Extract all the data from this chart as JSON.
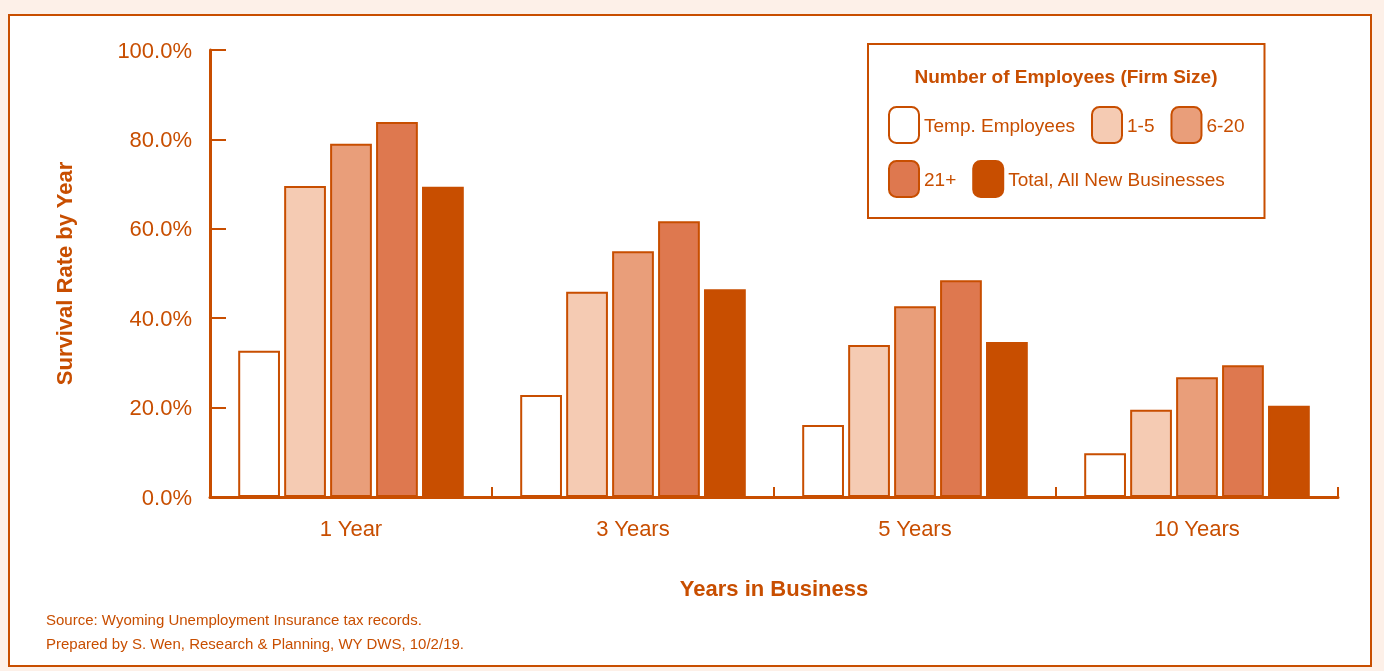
{
  "chart_data": {
    "type": "bar",
    "xlabel": "Years in Business",
    "ylabel": "Survival Rate by Year",
    "legend_title": "Number of Employees (Firm Size)",
    "legend": "top right",
    "categories": [
      "1 Year",
      "3 Years",
      "5 Years",
      "10 Years"
    ],
    "series": [
      {
        "name": "Temp. Employees",
        "color": "#ffffff",
        "values": [
          32.7,
          22.8,
          16.1,
          9.8
        ]
      },
      {
        "name": "1-5",
        "color": "#f5cbb3",
        "values": [
          69.6,
          45.9,
          34.0,
          19.5
        ]
      },
      {
        "name": "6-20",
        "color": "#e99e7a",
        "values": [
          79.0,
          55.0,
          42.7,
          26.8
        ]
      },
      {
        "name": "21+",
        "color": "#de784f",
        "values": [
          83.9,
          61.7,
          48.5,
          29.5
        ]
      },
      {
        "name": "Total, All New Businesses",
        "color": "#c84e00",
        "values": [
          69.4,
          46.5,
          34.7,
          20.4
        ]
      }
    ],
    "ylim": [
      0,
      100
    ],
    "yticks": [
      {
        "value": 0,
        "label": "0.0%"
      },
      {
        "value": 20,
        "label": "20.0%"
      },
      {
        "value": 40,
        "label": "40.0%"
      },
      {
        "value": 60,
        "label": "60.0%"
      },
      {
        "value": 80,
        "label": "80.0%"
      },
      {
        "value": 100,
        "label": "100.0%"
      }
    ],
    "grid": false,
    "annotations": [
      "Source: Wyoming Unemployment Insurance tax records.",
      "Prepared by S. Wen, Research & Planning, WY DWS, 10/2/19."
    ]
  }
}
